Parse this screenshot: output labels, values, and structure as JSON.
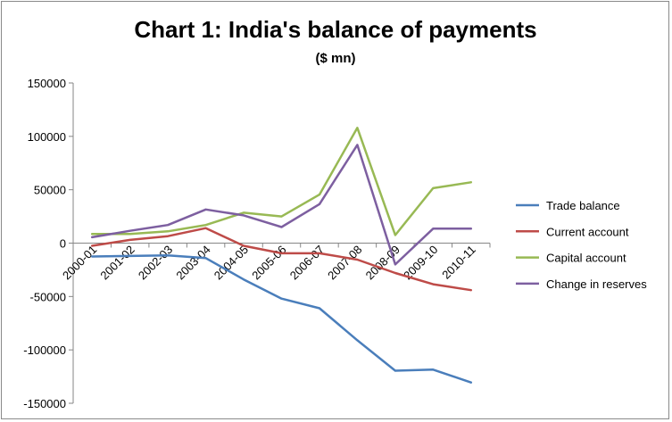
{
  "chart_data": {
    "type": "line",
    "title": "Chart 1: India's balance of payments",
    "subtitle": "($ mn)",
    "xlabel": "",
    "ylabel": "",
    "categories": [
      "2000-01",
      "2001-02",
      "2002-03",
      "2003-04",
      "2004-05",
      "2005-06",
      "2006-07",
      "2007-08",
      "2008-09",
      "2009-10",
      "2010-11"
    ],
    "ylim": [
      -150000,
      150000
    ],
    "yticks": [
      150000,
      100000,
      50000,
      0,
      -50000,
      -100000,
      -150000
    ],
    "ytick_labels": [
      "150000",
      "100000",
      "50000",
      "0",
      "-50000",
      "-100000",
      "-150000"
    ],
    "grid": false,
    "legend_position": "right",
    "series": [
      {
        "name": "Trade balance",
        "color": "#4a7ebb",
        "values": [
          -12500,
          -12000,
          -11500,
          -14000,
          -34000,
          -52000,
          -61000,
          -91000,
          -119500,
          -118500,
          -130500
        ]
      },
      {
        "name": "Current account",
        "color": "#be4b48",
        "values": [
          -2500,
          3000,
          6500,
          14000,
          -2500,
          -9500,
          -9500,
          -15500,
          -28000,
          -38500,
          -44000
        ]
      },
      {
        "name": "Capital account",
        "color": "#98b954",
        "values": [
          8500,
          8500,
          11000,
          17000,
          28500,
          25000,
          45500,
          108000,
          7500,
          51500,
          57000
        ]
      },
      {
        "name": "Change in reserves",
        "color": "#7d5fa0",
        "values": [
          5500,
          11500,
          17000,
          31500,
          26000,
          15000,
          36500,
          92000,
          -20000,
          13500,
          13500
        ]
      }
    ]
  }
}
